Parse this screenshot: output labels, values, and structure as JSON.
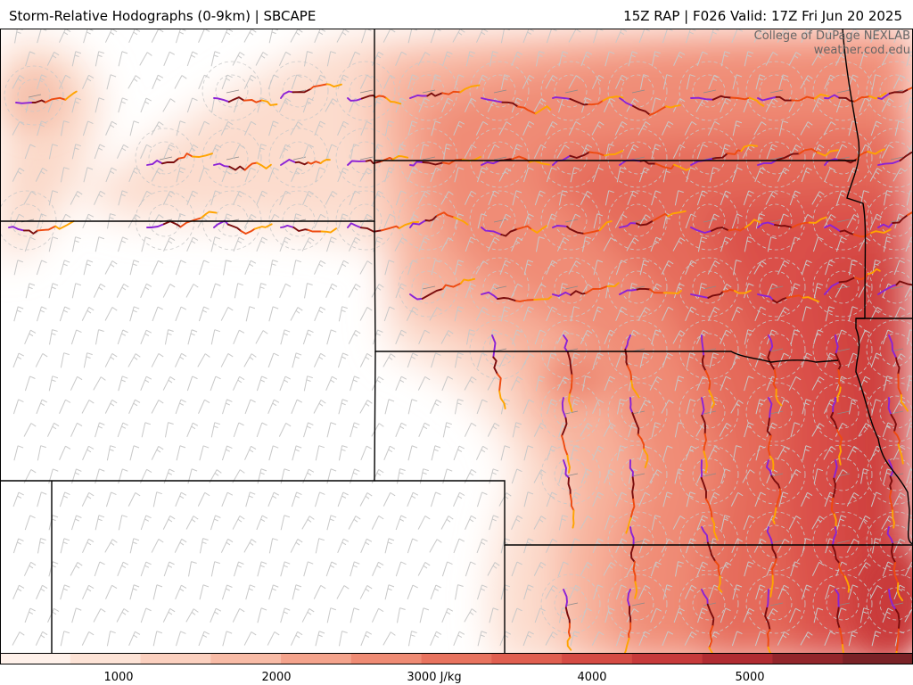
{
  "header": {
    "title": "Storm-Relative Hodographs (0-9km) | SBCAPE",
    "run_info": "15Z RAP | F026 Valid: 17Z Fri Jun 20 2025"
  },
  "credit": {
    "line1": "College of DuPage NEXLAB",
    "line2": "weather.cod.edu"
  },
  "colorbar": {
    "units": "J/kg",
    "ticks": [
      {
        "label": "1000"
      },
      {
        "label": "2000"
      },
      {
        "label": "3000 J/kg"
      },
      {
        "label": "4000"
      },
      {
        "label": "5000"
      }
    ],
    "colors": [
      "#fff1ea",
      "#fde3d6",
      "#fbd0bf",
      "#f8bba6",
      "#f4a38c",
      "#ef8b74",
      "#e8735f",
      "#e05f50",
      "#d54b44",
      "#c73a3b",
      "#b12c32",
      "#93262b",
      "#7a2227"
    ]
  },
  "legend_colors": {
    "hodo_0_1km": "#7a0c0c",
    "hodo_1_3km": "#ee4a10",
    "hodo_3_6km": "#ffa400",
    "hodo_6_9km": "#8b22d6",
    "barb": "#c8c8c8",
    "range_ring": "#c9c9c9",
    "border": "#000000"
  }
}
